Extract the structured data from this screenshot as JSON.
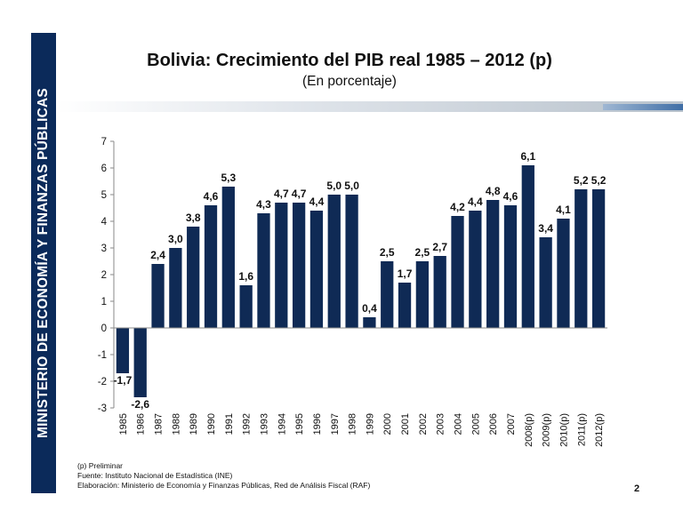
{
  "sidebar": {
    "text": "MINISTERIO DE ECONOMÍA Y FINANZAS PÚBLICAS"
  },
  "page_number": "2",
  "notes": {
    "line1": "(p) Preliminar",
    "line2": "Fuente: Instituto Nacional de Estadística (INE)",
    "line3": "Elaboración: Ministerio de Economía y Finanzas Públicas, Red de Análisis Fiscal (RAF)"
  },
  "colors": {
    "bar": "#0f2a55",
    "sidebar": "#0b2a5a"
  },
  "chart_data": {
    "type": "bar",
    "title": "Bolivia: Crecimiento del PIB real  1985 – 2012 (p)",
    "subtitle": "(En porcentaje)",
    "xlabel": "",
    "ylabel": "",
    "ylim": [
      -3,
      7
    ],
    "yticks": [
      "7",
      "6",
      "5",
      "4",
      "3",
      "2",
      "1",
      "0",
      "-1",
      "-2",
      "-3"
    ],
    "categories": [
      "1985",
      "1986",
      "1987",
      "1988",
      "1989",
      "1990",
      "1991",
      "1992",
      "1993",
      "1994",
      "1995",
      "1996",
      "1997",
      "1998",
      "1999",
      "2000",
      "2001",
      "2002",
      "2003",
      "2004",
      "2005",
      "2006",
      "2007",
      "2008(p)",
      "2009(p)",
      "2010(p)",
      "2011(p)",
      "2012(p)"
    ],
    "values": [
      -1.7,
      -2.6,
      2.4,
      3.0,
      3.8,
      4.6,
      5.3,
      1.6,
      4.3,
      4.7,
      4.7,
      4.4,
      5.0,
      5.0,
      0.4,
      2.5,
      1.7,
      2.5,
      2.7,
      4.2,
      4.4,
      4.8,
      4.6,
      6.1,
      3.4,
      4.1,
      5.2,
      5.2
    ],
    "labels": [
      "-1,7",
      "-2,6",
      "2,4",
      "3,0",
      "3,8",
      "4,6",
      "5,3",
      "1,6",
      "4,3",
      "4,7",
      "4,7",
      "4,4",
      "5,0",
      "5,0",
      "0,4",
      "2,5",
      "1,7",
      "2,5",
      "2,7",
      "4,2",
      "4,4",
      "4,8",
      "4,6",
      "6,1",
      "3,4",
      "4,1",
      "5,2",
      "5,2"
    ],
    "grid": false,
    "legend": "none"
  }
}
